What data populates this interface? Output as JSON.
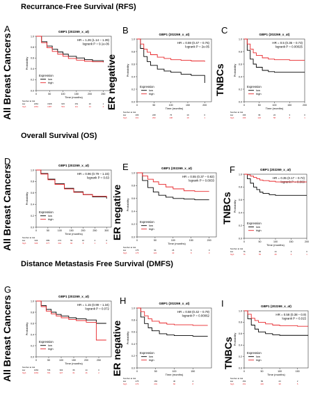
{
  "sections": [
    {
      "title": "Recurrance-Free Survival (RFS)"
    },
    {
      "title": "Overall Survival (OS)"
    },
    {
      "title": "Distance Metastasis Free Survival (DMFS)"
    }
  ],
  "row_labels": {
    "all": "All Breast Cancers",
    "er": "ER negative",
    "tnbc": "TNBCs"
  },
  "legend": {
    "title": "Expression",
    "low": "low",
    "high": "high"
  },
  "colors": {
    "low": "#000000",
    "high": "#e8262a",
    "axis": "#333333"
  },
  "chart_data": [
    {
      "id": "A",
      "letter": "A",
      "type": "line",
      "title": "GBP1 (202269_x_at)",
      "hr": "HR = 1.26 (1.14 – 1.39)",
      "logrank": "logrank P = 9.1e-06",
      "xlabel": "Time (months)",
      "ylabel": "Probability",
      "xlim": [
        0,
        280
      ],
      "xticks": [
        0,
        50,
        100,
        150,
        200,
        250
      ],
      "ylim": [
        0,
        1
      ],
      "yticks": [
        0.0,
        0.2,
        0.4,
        0.6,
        0.8,
        1.0
      ],
      "legend_pos": "bottom-left",
      "series": [
        {
          "name": "low",
          "x": [
            0,
            20,
            40,
            60,
            80,
            100,
            120,
            150,
            180,
            210,
            250
          ],
          "y": [
            1.0,
            0.9,
            0.82,
            0.76,
            0.71,
            0.67,
            0.63,
            0.6,
            0.57,
            0.55,
            0.53
          ]
        },
        {
          "name": "high",
          "x": [
            0,
            20,
            40,
            60,
            80,
            100,
            120,
            150,
            180,
            210,
            250
          ],
          "y": [
            1.0,
            0.88,
            0.79,
            0.72,
            0.67,
            0.63,
            0.59,
            0.56,
            0.54,
            0.53,
            0.52
          ]
        }
      ],
      "risk_title": "Number at risk",
      "risk": {
        "times": [
          0,
          50,
          100,
          150,
          200,
          250
        ],
        "low": [
          "2461",
          "1528",
          "615",
          "151",
          "10",
          "1"
        ],
        "high": [
          "2461",
          "1387",
          "534",
          "111",
          "14",
          "4"
        ]
      }
    },
    {
      "id": "B",
      "letter": "B",
      "type": "line",
      "title": "GBP1 (202269_x_at)",
      "hr": "HR = 0.59 (0.47 – 0.76)",
      "logrank": "logrank P = 2e-05",
      "xlabel": "Time (months)",
      "ylabel": "Probability",
      "xlim": [
        0,
        220
      ],
      "xticks": [
        0,
        50,
        100,
        150,
        200
      ],
      "ylim": [
        0,
        1
      ],
      "yticks": [
        0.0,
        0.2,
        0.4,
        0.6,
        0.8,
        1.0
      ],
      "legend_pos": "bottom-left",
      "series": [
        {
          "name": "low",
          "x": [
            0,
            10,
            20,
            30,
            40,
            60,
            80,
            100,
            130,
            160,
            200
          ],
          "y": [
            1.0,
            0.85,
            0.72,
            0.64,
            0.58,
            0.52,
            0.49,
            0.47,
            0.44,
            0.42,
            0.3
          ]
        },
        {
          "name": "high",
          "x": [
            0,
            10,
            20,
            30,
            40,
            60,
            80,
            100,
            130,
            160,
            200
          ],
          "y": [
            1.0,
            0.92,
            0.84,
            0.79,
            0.75,
            0.71,
            0.69,
            0.67,
            0.66,
            0.65,
            0.64
          ]
        }
      ],
      "risk_title": "Number at risk",
      "risk": {
        "times": [
          0,
          50,
          100,
          150,
          200
        ],
        "low": [
          "406",
          "248",
          "76",
          "19",
          "0"
        ],
        "high": [
          "401",
          "290",
          "108",
          "18",
          "1"
        ]
      }
    },
    {
      "id": "C",
      "letter": "C",
      "type": "line",
      "title": "GBP1 (202269_x_at)",
      "hr": "HR = 0.5 (0.35 – 0.73)",
      "logrank": "logrank P = 0.00025",
      "xlabel": "Time (months)",
      "ylabel": "Probability",
      "xlim": [
        0,
        200
      ],
      "xticks": [
        0,
        50,
        100,
        150,
        200
      ],
      "ylim": [
        0,
        1
      ],
      "yticks": [
        0.0,
        0.2,
        0.4,
        0.6,
        0.8,
        1.0
      ],
      "legend_pos": "bottom-left",
      "series": [
        {
          "name": "low",
          "x": [
            0,
            10,
            20,
            30,
            40,
            60,
            80,
            100,
            150,
            200
          ],
          "y": [
            1.0,
            0.82,
            0.68,
            0.6,
            0.55,
            0.5,
            0.48,
            0.47,
            0.47,
            0.47
          ]
        },
        {
          "name": "high",
          "x": [
            0,
            10,
            20,
            30,
            40,
            60,
            80,
            100,
            150,
            200
          ],
          "y": [
            1.0,
            0.92,
            0.84,
            0.78,
            0.74,
            0.7,
            0.68,
            0.67,
            0.66,
            0.66
          ]
        }
      ],
      "risk_title": "Number at risk",
      "risk": {
        "times": [
          0,
          50,
          100,
          150,
          200
        ],
        "low": [
          "196",
          "96",
          "24",
          "3",
          "0"
        ],
        "high": [
          "196",
          "122",
          "58",
          "8",
          "1"
        ]
      }
    },
    {
      "id": "D",
      "letter": "D",
      "type": "line",
      "title": "GBP1 (202269_x_at)",
      "hr": "HR = 0.96 (0.79 – 1.15)",
      "logrank": "logrank P = 0.63",
      "xlabel": "Time (months)",
      "ylabel": "Probability",
      "xlim": [
        0,
        320
      ],
      "xticks": [
        0,
        50,
        100,
        150,
        200,
        250,
        300
      ],
      "ylim": [
        0,
        1
      ],
      "yticks": [
        0.0,
        0.2,
        0.4,
        0.6,
        0.8,
        1.0
      ],
      "legend_pos": "bottom-left",
      "series": [
        {
          "name": "low",
          "x": [
            0,
            20,
            50,
            80,
            120,
            160,
            200,
            240,
            300
          ],
          "y": [
            1.0,
            0.94,
            0.84,
            0.76,
            0.68,
            0.62,
            0.57,
            0.53,
            0.5
          ]
        },
        {
          "name": "high",
          "x": [
            0,
            20,
            50,
            80,
            120,
            160,
            200,
            240,
            300
          ],
          "y": [
            1.0,
            0.93,
            0.83,
            0.75,
            0.67,
            0.61,
            0.57,
            0.54,
            0.52
          ]
        }
      ],
      "risk_title": "Number at risk",
      "risk": {
        "times": [
          0,
          50,
          100,
          150,
          200,
          250,
          300
        ],
        "low": [
          "943",
          "689",
          "274",
          "53",
          "10",
          "2",
          "0"
        ],
        "high": [
          "936",
          "677",
          "301",
          "60",
          "8",
          "1",
          "0"
        ]
      }
    },
    {
      "id": "E",
      "letter": "E",
      "type": "line",
      "title": "GBP1 (202269_x_at)",
      "hr": "HR = 0.55 (0.37 – 0.82)",
      "logrank": "logrank P = 0.0033",
      "xlabel": "Time (months)",
      "ylabel": "Probability",
      "xlim": [
        0,
        220
      ],
      "xticks": [
        0,
        50,
        100,
        150,
        200
      ],
      "ylim": [
        0,
        1
      ],
      "yticks": [
        0.0,
        0.2,
        0.4,
        0.6,
        0.8,
        1.0
      ],
      "legend_pos": "bottom-left",
      "series": [
        {
          "name": "low",
          "x": [
            0,
            15,
            30,
            45,
            60,
            80,
            100,
            130,
            160,
            200
          ],
          "y": [
            1.0,
            0.88,
            0.77,
            0.7,
            0.65,
            0.62,
            0.6,
            0.59,
            0.58,
            0.58
          ]
        },
        {
          "name": "high",
          "x": [
            0,
            15,
            30,
            45,
            60,
            80,
            100,
            130,
            160,
            200
          ],
          "y": [
            1.0,
            0.95,
            0.9,
            0.86,
            0.82,
            0.78,
            0.75,
            0.72,
            0.71,
            0.71
          ]
        }
      ],
      "risk_title": "Number at risk",
      "risk": {
        "times": [
          0,
          50,
          100,
          150,
          200
        ],
        "low": [
          "175",
          "94",
          "26",
          "6",
          "0"
        ],
        "high": [
          "175",
          "124",
          "40",
          "8",
          "0"
        ]
      }
    },
    {
      "id": "F",
      "letter": "F",
      "type": "line",
      "title": "GBP1 (202269_x_at)",
      "hr": "HR = 0.35 (0.17 – 0.72)",
      "logrank": "logrank P = 0.003",
      "xlabel": "Time (months)",
      "ylabel": "Probability",
      "xlim": [
        0,
        200
      ],
      "xticks": [
        0,
        50,
        100,
        150,
        200
      ],
      "ylim": [
        0,
        1
      ],
      "yticks": [
        0.0,
        0.2,
        0.4,
        0.6,
        0.8,
        1.0
      ],
      "legend_pos": "bottom-left",
      "series": [
        {
          "name": "low",
          "x": [
            0,
            10,
            20,
            30,
            40,
            50,
            60,
            80,
            100,
            150,
            200
          ],
          "y": [
            1.0,
            0.93,
            0.86,
            0.8,
            0.76,
            0.72,
            0.7,
            0.68,
            0.67,
            0.67,
            0.67
          ]
        },
        {
          "name": "high",
          "x": [
            0,
            10,
            20,
            30,
            40,
            50,
            60,
            80,
            100,
            150,
            200
          ],
          "y": [
            1.0,
            0.99,
            0.97,
            0.95,
            0.93,
            0.91,
            0.9,
            0.89,
            0.88,
            0.88,
            0.88
          ]
        }
      ],
      "risk_title": "Number at risk",
      "risk": {
        "times": [
          0,
          50,
          100,
          150,
          200
        ],
        "low": [
          "76",
          "40",
          "14",
          "3",
          "0"
        ],
        "high": [
          "76",
          "55",
          "28",
          "6",
          "1"
        ]
      }
    },
    {
      "id": "G",
      "letter": "G",
      "type": "line",
      "title": "GBP1 (202269_x_at)",
      "hr": "HR = 1.15 (0.99 – 1.34)",
      "logrank": "logrank P = 0.072",
      "xlabel": "Time (months)",
      "ylabel": "Probability",
      "xlim": [
        0,
        300
      ],
      "xticks": [
        0,
        50,
        100,
        150,
        200,
        250
      ],
      "ylim": [
        0,
        1
      ],
      "yticks": [
        0.0,
        0.2,
        0.4,
        0.6,
        0.8,
        1.0
      ],
      "legend_pos": "bottom-left",
      "series": [
        {
          "name": "low",
          "x": [
            0,
            20,
            40,
            60,
            80,
            100,
            130,
            160,
            200,
            240,
            280
          ],
          "y": [
            1.0,
            0.92,
            0.85,
            0.8,
            0.76,
            0.73,
            0.7,
            0.68,
            0.66,
            0.6,
            0.6
          ]
        },
        {
          "name": "high",
          "x": [
            0,
            20,
            40,
            60,
            80,
            100,
            130,
            160,
            200,
            240,
            280
          ],
          "y": [
            1.0,
            0.9,
            0.82,
            0.77,
            0.73,
            0.7,
            0.67,
            0.65,
            0.62,
            0.3,
            0.3
          ]
        }
      ],
      "risk_title": "Number at risk",
      "risk": {
        "times": [
          0,
          50,
          100,
          150,
          200,
          250
        ],
        "low": [
          "1063",
          "706",
          "304",
          "66",
          "14",
          "0"
        ],
        "high": [
          "1063",
          "781",
          "327",
          "61",
          "16",
          "2"
        ]
      }
    },
    {
      "id": "H",
      "letter": "H",
      "type": "line",
      "title": "GBP1 (202269_x_at)",
      "hr": "HR = 0.58 (0.42 – 0.79)",
      "logrank": "logrank P = 0.00062",
      "xlabel": "Time (months)",
      "ylabel": "Probability",
      "xlim": [
        0,
        200
      ],
      "xticks": [
        0,
        50,
        100,
        150
      ],
      "ylim": [
        0,
        1
      ],
      "yticks": [
        0.0,
        0.2,
        0.4,
        0.6,
        0.8,
        1.0
      ],
      "legend_pos": "bottom-left",
      "series": [
        {
          "name": "low",
          "x": [
            0,
            10,
            20,
            30,
            40,
            60,
            80,
            100,
            150,
            190
          ],
          "y": [
            1.0,
            0.85,
            0.74,
            0.67,
            0.62,
            0.57,
            0.55,
            0.54,
            0.53,
            0.53
          ]
        },
        {
          "name": "high",
          "x": [
            0,
            10,
            20,
            30,
            40,
            60,
            80,
            100,
            150,
            190
          ],
          "y": [
            1.0,
            0.94,
            0.87,
            0.82,
            0.78,
            0.75,
            0.73,
            0.72,
            0.71,
            0.71
          ]
        }
      ],
      "risk_title": "Number at risk",
      "risk": {
        "times": [
          0,
          50,
          100,
          150
        ],
        "low": [
          "275",
          "163",
          "40",
          "4"
        ],
        "high": [
          "276",
          "201",
          "66",
          "8"
        ]
      }
    },
    {
      "id": "I",
      "letter": "I",
      "type": "line",
      "title": "GBP1 (202269_x_at)",
      "hr": "HR = 0.58 (0.38 – 0.9)",
      "logrank": "logrank P = 0.015",
      "xlabel": "Time (months)",
      "ylabel": "Probability",
      "xlim": [
        0,
        180
      ],
      "xticks": [
        0,
        50,
        100,
        150
      ],
      "ylim": [
        0,
        1
      ],
      "yticks": [
        0.0,
        0.2,
        0.4,
        0.6,
        0.8,
        1.0
      ],
      "legend_pos": "bottom-left",
      "series": [
        {
          "name": "low",
          "x": [
            0,
            10,
            20,
            30,
            40,
            60,
            80,
            100,
            150,
            180
          ],
          "y": [
            1.0,
            0.86,
            0.75,
            0.68,
            0.63,
            0.6,
            0.58,
            0.57,
            0.57,
            0.57
          ]
        },
        {
          "name": "high",
          "x": [
            0,
            10,
            20,
            30,
            40,
            60,
            80,
            100,
            150,
            180
          ],
          "y": [
            1.0,
            0.94,
            0.87,
            0.83,
            0.8,
            0.77,
            0.75,
            0.74,
            0.73,
            0.73
          ]
        }
      ],
      "risk_title": "Number at risk",
      "risk": {
        "times": [
          0,
          50,
          100,
          150
        ],
        "low": [
          "152",
          "83",
          "23",
          "2"
        ],
        "high": [
          "151",
          "100",
          "38",
          "5"
        ]
      }
    }
  ]
}
